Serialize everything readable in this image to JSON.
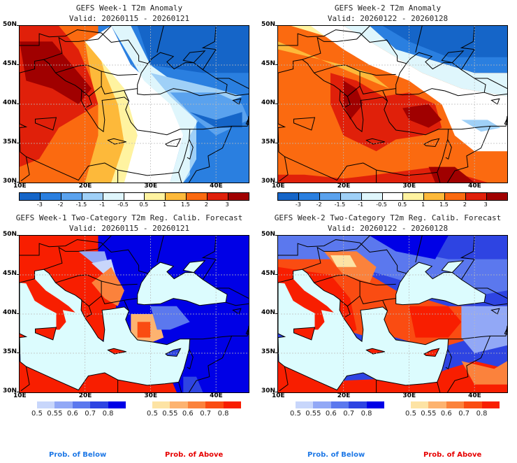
{
  "panels": [
    {
      "title": "GEFS Week-1 T2m Anomaly",
      "valid": "Valid: 20260115 - 20260121",
      "type": "anomaly",
      "pattern": "week1-anomaly"
    },
    {
      "title": "GEFS Week-2 T2m Anomaly",
      "valid": "Valid: 20260122 - 20260128",
      "type": "anomaly",
      "pattern": "week2-anomaly"
    },
    {
      "title": "GEFS Week-1 Two-Category T2m Reg. Calib. Forecast",
      "valid": "Valid: 20260115 - 20260121",
      "type": "probability",
      "pattern": "week1-prob"
    },
    {
      "title": "GEFS Week-2 Two-Category T2m Reg. Calib. Forecast",
      "valid": "Valid: 20260122 - 20260128",
      "type": "probability",
      "pattern": "week2-prob"
    }
  ],
  "axes": {
    "lat_labels": [
      "50N",
      "45N",
      "40N",
      "35N",
      "30N"
    ],
    "lon_labels": [
      "10E",
      "20E",
      "30E",
      "40E"
    ]
  },
  "anomaly_colorbar": {
    "labels": [
      "-3",
      "-2",
      "-1.5",
      "-1",
      "-0.5",
      "0.5",
      "1",
      "1.5",
      "2",
      "3"
    ],
    "colors": [
      "#1565c8",
      "#2a7fe0",
      "#5aa2ee",
      "#9fd0f7",
      "#dff6fc",
      "#ffffff",
      "#fff3a0",
      "#fdb93a",
      "#fb6a10",
      "#e0200a",
      "#a00000"
    ]
  },
  "prob_below_colorbar": {
    "labels": [
      "0.5",
      "0.55",
      "0.6",
      "0.7",
      "0.8"
    ],
    "colors": [
      "#c8d6fb",
      "#92a8f6",
      "#5b78ee",
      "#2e44e2",
      "#0000e6"
    ]
  },
  "prob_above_colorbar": {
    "labels": [
      "0.5",
      "0.55",
      "0.6",
      "0.7",
      "0.8"
    ],
    "colors": [
      "#fde3a4",
      "#fdb370",
      "#fb823c",
      "#fa4c12",
      "#f81e00"
    ]
  },
  "legend": {
    "below_label": "Prob. of Below",
    "above_label": "Prob. of Above",
    "below_color": "#1e78e6",
    "above_color": "#e60000"
  },
  "sea_color": "#dcfcfe"
}
